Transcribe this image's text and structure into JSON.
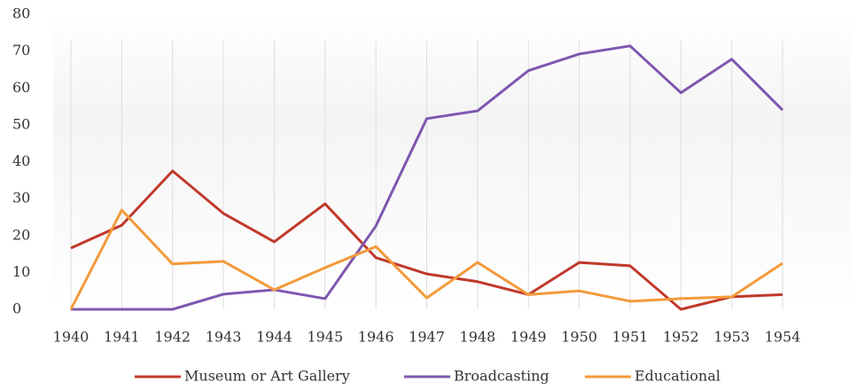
{
  "chart_data": {
    "type": "line",
    "categories": [
      "1940",
      "1941",
      "1942",
      "1943",
      "1944",
      "1945",
      "1946",
      "1947",
      "1948",
      "1949",
      "1950",
      "1951",
      "1952",
      "1953",
      "1954"
    ],
    "series": [
      {
        "name": "Museum or Art Gallery",
        "color": "#c0392b",
        "values": [
          16.6,
          22.8,
          37.5,
          26,
          18.3,
          28.6,
          14,
          9.6,
          7.5,
          4,
          12.7,
          11.8,
          0,
          3.4,
          4
        ]
      },
      {
        "name": "Broadcasting",
        "color": "#7e57b0",
        "values": [
          0,
          0,
          0,
          4.1,
          5.3,
          2.9,
          22.6,
          51.7,
          53.8,
          64.7,
          69.2,
          71.4,
          58.7,
          67.8,
          54
        ]
      },
      {
        "name": "Educational",
        "color": "#f39a3a",
        "values": [
          0,
          26.9,
          12.3,
          13,
          5.3,
          11.3,
          17,
          3.1,
          12.7,
          4,
          5,
          2.2,
          2.9,
          3.4,
          12.5
        ]
      }
    ],
    "ylim": [
      0,
      80
    ],
    "yticks": [
      0,
      10,
      20,
      30,
      40,
      50,
      60,
      70,
      80
    ],
    "grid": true,
    "legend": "bottom"
  }
}
